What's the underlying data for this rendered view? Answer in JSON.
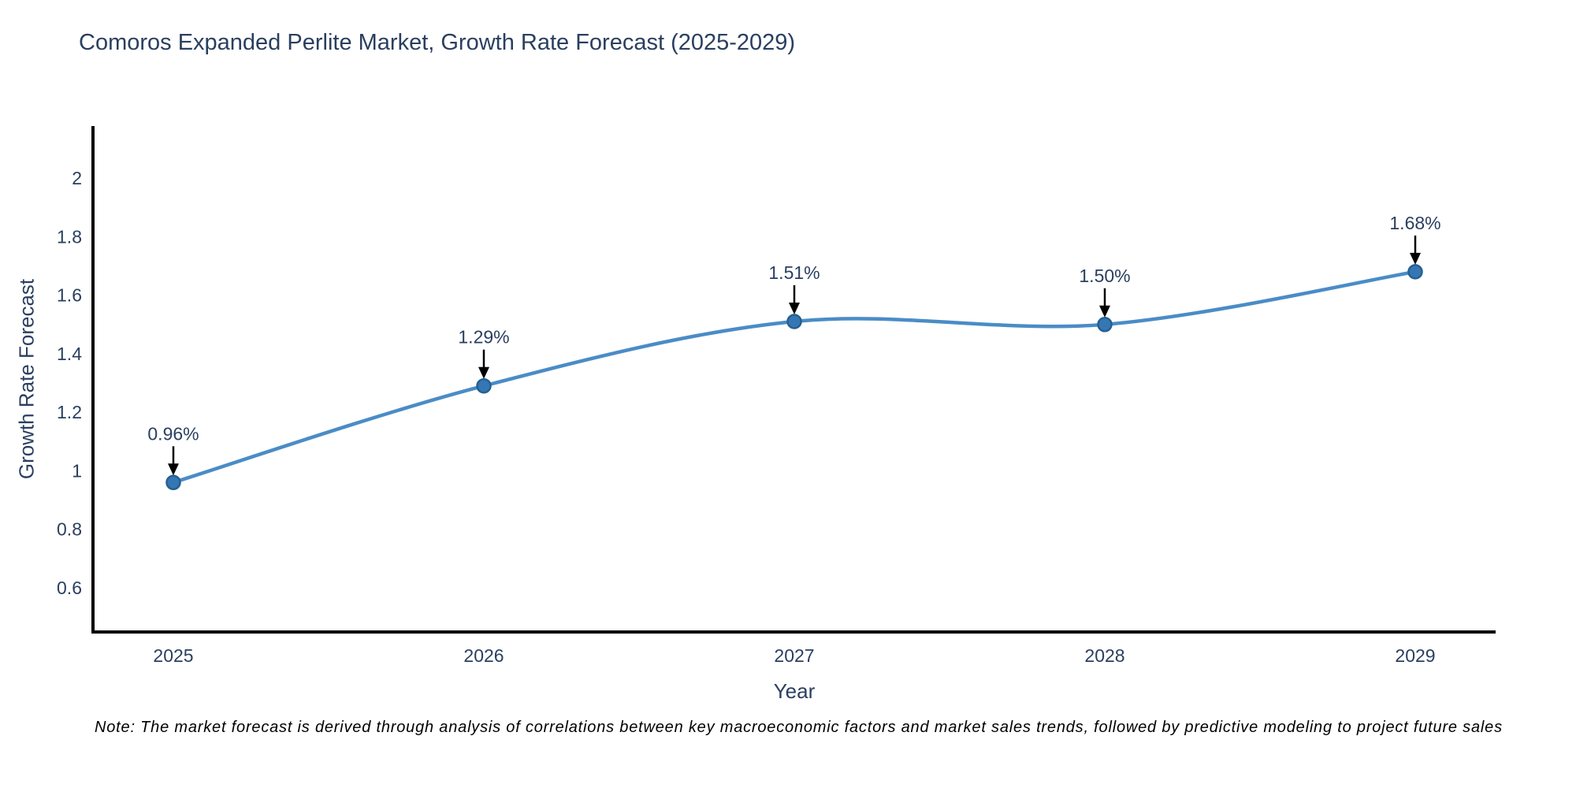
{
  "chart": {
    "title": "Comoros Expanded Perlite Market, Growth Rate Forecast (2025-2029)",
    "xlabel": "Year",
    "ylabel": "Growth Rate Forecast",
    "note": "Note: The market forecast is derived through analysis of correlations between key macroeconomic factors and market sales trends, followed by predictive modeling to project future sales",
    "colors": {
      "line": "#4a8cc6",
      "marker": "#3577b4",
      "marker_edge": "#27608f",
      "axis": "#000000",
      "text": "#2a3f5f",
      "annotation_text": "#2a3f5f",
      "arrow": "#000000",
      "note_text": "#000000",
      "background": "#ffffff"
    }
  },
  "chart_data": {
    "type": "line",
    "line_shape": "spline",
    "x": [
      2025,
      2026,
      2027,
      2028,
      2029
    ],
    "categories": [
      "2025",
      "2026",
      "2027",
      "2028",
      "2029"
    ],
    "series": [
      {
        "name": "Growth Rate Forecast",
        "values": [
          0.96,
          1.29,
          1.51,
          1.5,
          1.68
        ]
      }
    ],
    "point_labels": [
      "0.96%",
      "1.29%",
      "1.51%",
      "1.50%",
      "1.68%"
    ],
    "yticks": [
      0.6,
      0.8,
      1,
      1.2,
      1.4,
      1.6,
      1.8,
      2
    ],
    "ytick_labels": [
      "0.6",
      "0.8",
      "1",
      "1.2",
      "1.4",
      "1.6",
      "1.8",
      "2"
    ],
    "ylim": [
      0.449,
      2.178
    ],
    "title": "Comoros Expanded Perlite Market, Growth Rate Forecast (2025-2029)",
    "xlabel": "Year",
    "ylabel": "Growth Rate Forecast",
    "grid": false,
    "legend": false,
    "annotations": "arrow-down-to-point"
  }
}
